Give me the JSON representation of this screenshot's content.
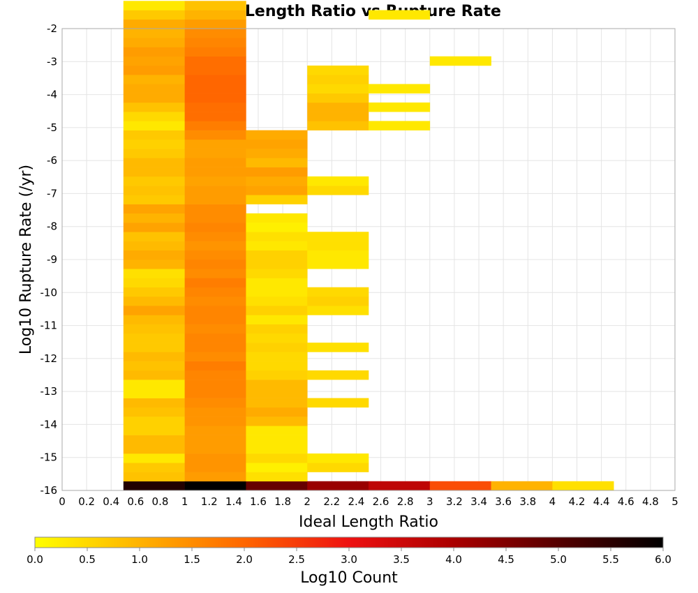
{
  "chart_data": {
    "type": "heatmap",
    "title": "Ideal Length Ratio vs Rupture Rate",
    "xlabel": "Ideal Length Ratio",
    "ylabel": "Log10 Rupture Rate (/yr)",
    "xlim": [
      0,
      5
    ],
    "ylim": [
      -16,
      -2
    ],
    "x_ticks": [
      "0",
      "0.2",
      "0.4",
      "0.6",
      "0.8",
      "1",
      "1.2",
      "1.4",
      "1.6",
      "1.8",
      "2",
      "2.2",
      "2.4",
      "2.6",
      "2.8",
      "3",
      "3.2",
      "3.4",
      "3.6",
      "3.8",
      "4",
      "4.2",
      "4.4",
      "4.6",
      "4.8",
      "5"
    ],
    "y_ticks": [
      "-2",
      "-3",
      "-4",
      "-5",
      "-6",
      "-7",
      "-8",
      "-9",
      "-10",
      "-11",
      "-12",
      "-13",
      "-14",
      "-15",
      "-16"
    ],
    "x_bin_width": 0.5,
    "y_bin_height": 0.28,
    "colorbar": {
      "label": "Log10 Count",
      "range": [
        0.0,
        6.0
      ],
      "ticks": [
        "0.0",
        "0.5",
        "1.0",
        "1.5",
        "2.0",
        "2.5",
        "3.0",
        "3.5",
        "4.0",
        "4.5",
        "5.0",
        "5.5",
        "6.0"
      ],
      "stops": [
        {
          "v": 0.0,
          "color": "#ffff00"
        },
        {
          "v": 2.0,
          "color": "#ff6600"
        },
        {
          "v": 3.0,
          "color": "#ee1111"
        },
        {
          "v": 4.0,
          "color": "#aa0000"
        },
        {
          "v": 5.0,
          "color": "#550000"
        },
        {
          "v": 6.0,
          "color": "#000000"
        }
      ]
    },
    "columns": [
      {
        "x0": 0.5,
        "y_start": -16.0,
        "values": [
          5.6,
          0.8,
          0.7,
          0.3,
          0.9,
          0.9,
          0.6,
          0.6,
          0.8,
          0.9,
          0.3,
          0.3,
          0.9,
          0.8,
          0.9,
          0.7,
          0.7,
          0.8,
          0.9,
          1.2,
          0.9,
          0.7,
          0.5,
          0.4,
          1.0,
          1.1,
          0.9,
          0.8,
          1.2,
          1.0,
          1.2,
          0.7,
          0.8,
          0.7,
          0.9,
          0.9,
          0.7,
          0.6,
          0.7,
          0.3,
          0.5,
          0.8,
          1.1,
          1.1,
          1.0,
          1.3,
          1.2,
          1.3,
          1.1,
          1.0,
          1.1,
          0.7,
          0.3
        ]
      },
      {
        "x0": 1.0,
        "y_start": -16.0,
        "values": [
          6.0,
          1.3,
          1.4,
          1.4,
          1.3,
          1.3,
          1.3,
          1.4,
          1.4,
          1.5,
          1.6,
          1.6,
          1.6,
          1.7,
          1.5,
          1.6,
          1.6,
          1.5,
          1.6,
          1.6,
          1.5,
          1.6,
          1.7,
          1.5,
          1.6,
          1.5,
          1.4,
          1.5,
          1.6,
          1.5,
          1.5,
          1.3,
          1.3,
          1.2,
          1.3,
          1.3,
          1.2,
          1.2,
          1.5,
          1.7,
          1.9,
          1.9,
          2.0,
          2.0,
          2.0,
          1.9,
          1.9,
          1.7,
          1.6,
          1.5,
          1.3,
          1.0,
          0.8
        ]
      },
      {
        "x0": 1.5,
        "y_start": -16.0,
        "values": [
          4.8,
          0.4,
          0.2,
          0.5,
          0.3,
          0.3,
          0.3,
          0.9,
          1.1,
          0.9,
          0.9,
          0.9,
          0.6,
          0.5,
          0.5,
          0.6,
          0.5,
          0.6,
          0.3,
          0.6,
          0.4,
          0.3,
          0.3,
          0.5,
          0.6,
          0.6,
          0.3,
          0.4,
          0.2,
          0.3,
          null,
          0.6,
          1.2,
          1.1,
          1.3,
          0.9,
          1.1,
          1.2,
          1.1
        ]
      },
      {
        "x0": 2.0,
        "y_start": -16.0,
        "values": [
          4.2,
          null,
          0.5,
          0.3,
          null,
          null,
          null,
          null,
          null,
          0.5,
          null,
          null,
          0.5,
          null,
          null,
          0.4,
          null,
          null,
          null,
          0.4,
          0.6,
          0.5,
          null,
          null,
          0.3,
          0.3,
          0.4,
          0.4,
          null,
          null,
          null,
          null,
          0.5,
          0.3,
          null,
          null,
          null,
          null,
          null,
          0.8,
          1.0,
          1.0,
          0.7,
          0.5,
          0.6,
          0.5
        ]
      },
      {
        "x0": 2.5,
        "y_start": -16.0,
        "values": [
          3.7,
          null,
          null,
          null,
          null,
          null,
          null,
          null,
          null,
          null,
          null,
          null,
          null,
          null,
          null,
          null,
          null,
          null,
          null,
          null,
          null,
          null,
          null,
          null,
          null,
          null,
          null,
          null,
          null,
          null,
          null,
          null,
          null,
          null,
          null,
          null,
          null,
          null,
          null,
          0.3,
          null,
          0.3,
          null,
          0.3,
          null,
          null,
          null,
          null,
          null,
          null,
          null,
          0.3
        ]
      },
      {
        "x0": 3.0,
        "y_start": -16.0,
        "values": [
          2.3,
          null,
          null,
          null,
          null,
          null,
          null,
          null,
          null,
          null,
          null,
          null,
          null,
          null,
          null,
          null,
          null,
          null,
          null,
          null,
          null,
          null,
          null,
          null,
          null,
          null,
          null,
          null,
          null,
          null,
          null,
          null,
          null,
          null,
          null,
          null,
          null,
          null,
          null,
          null,
          null,
          null,
          null,
          null,
          null,
          null,
          0.3
        ]
      },
      {
        "x0": 3.5,
        "y_start": -16.0,
        "values": [
          1.0
        ]
      },
      {
        "x0": 4.0,
        "y_start": -16.0,
        "values": [
          0.4
        ]
      }
    ]
  }
}
